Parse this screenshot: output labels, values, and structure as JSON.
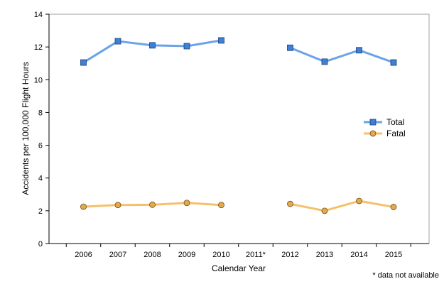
{
  "chart_data": {
    "type": "line",
    "xlabel": "Calendar Year",
    "ylabel": "Accidents per 100,000 Flight Hours",
    "ylim": [
      0,
      14
    ],
    "yticks": [
      "0",
      "2",
      "4",
      "6",
      "8",
      "10",
      "12",
      "14"
    ],
    "categories": [
      "2006",
      "2007",
      "2008",
      "2009",
      "2010",
      "2011*",
      "2012",
      "2013",
      "2014",
      "2015"
    ],
    "series": [
      {
        "name": "Total",
        "color": "#6aa3e8",
        "marker": "square",
        "marker_color": "#3d7fd9",
        "values": [
          11.05,
          12.35,
          12.1,
          12.05,
          12.4,
          null,
          11.95,
          11.1,
          11.8,
          11.05
        ]
      },
      {
        "name": "Fatal",
        "color": "#f6c06a",
        "marker": "circle",
        "marker_color": "#e3a94e",
        "values": [
          2.25,
          2.35,
          2.37,
          2.48,
          2.35,
          null,
          2.42,
          2.0,
          2.6,
          2.23
        ]
      }
    ],
    "legend_position": "right",
    "grid": false,
    "footnote": "* data not available"
  }
}
